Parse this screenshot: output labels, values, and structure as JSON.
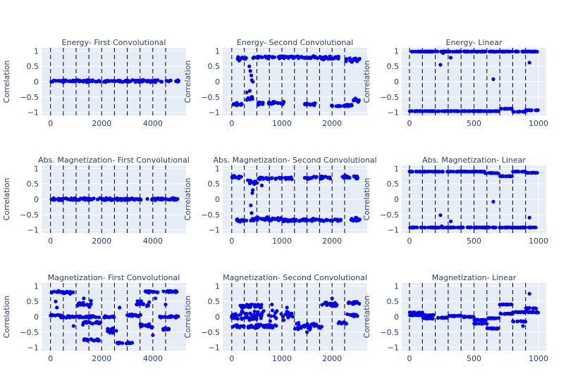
{
  "chart_data": {
    "type": "scatter",
    "grid": "true",
    "series_color": "#0000ee",
    "divider_line_color": "#000000",
    "plot_bg": "#e5ecf6",
    "y_ticks": [
      -1,
      -0.5,
      0,
      0.5,
      1
    ],
    "y_tick_labels": [
      "−1",
      "−0.5",
      "0",
      "0.5",
      "1"
    ],
    "ylim": [
      -1.1,
      1.1
    ],
    "panels": [
      {
        "title": "Energy- First Convolutional",
        "ylabel": "Correlation",
        "xlim": [
          -350,
          5300
        ],
        "x_ticks": [
          0,
          2000,
          4000
        ],
        "dividers": [
          0,
          500,
          1000,
          1500,
          2000,
          2500,
          3000,
          3500,
          4000,
          4500
        ],
        "segments": [
          {
            "from": 0,
            "to": 5100,
            "level": 0.02,
            "spread": 0.05
          }
        ],
        "points": []
      },
      {
        "title": "Energy- Second Convolutional",
        "ylabel": "Correlation",
        "xlim": [
          -180,
          2700
        ],
        "x_ticks": [
          0,
          1000,
          2000
        ],
        "dividers": [
          0,
          250,
          500,
          750,
          1000,
          1250,
          1500,
          1750,
          2000,
          2250
        ],
        "segments": [
          {
            "from": 0,
            "to": 200,
            "level": -0.75,
            "spread": 0.08
          },
          {
            "from": 100,
            "to": 300,
            "level": 0.75,
            "spread": 0.08
          },
          {
            "from": 300,
            "to": 420,
            "level": -0.55,
            "spread": 0.12
          },
          {
            "from": 420,
            "to": 1000,
            "level": 0.8,
            "spread": 0.06
          },
          {
            "from": 520,
            "to": 1050,
            "level": -0.7,
            "spread": 0.08
          },
          {
            "from": 1000,
            "to": 1500,
            "level": 0.8,
            "spread": 0.06
          },
          {
            "from": 1450,
            "to": 2150,
            "level": 0.78,
            "spread": 0.07
          },
          {
            "from": 1450,
            "to": 1700,
            "level": -0.72,
            "spread": 0.06
          },
          {
            "from": 1950,
            "to": 2400,
            "level": -0.78,
            "spread": 0.05
          },
          {
            "from": 2250,
            "to": 2550,
            "level": 0.7,
            "spread": 0.1
          },
          {
            "from": 2400,
            "to": 2570,
            "level": -0.6,
            "spread": 0.08
          }
        ],
        "points": [
          {
            "x": 350,
            "y": 0.5
          },
          {
            "x": 370,
            "y": 0.35
          },
          {
            "x": 390,
            "y": 0.2
          },
          {
            "x": 400,
            "y": 0.05
          },
          {
            "x": 420,
            "y": 0.0
          },
          {
            "x": 360,
            "y": -0.3
          },
          {
            "x": 300,
            "y": -0.35
          }
        ]
      },
      {
        "title": "Energy- Linear",
        "ylabel": "Correlation",
        "xlim": [
          -60,
          1060
        ],
        "x_ticks": [
          0,
          500,
          1000
        ],
        "dividers": [
          0,
          100,
          200,
          300,
          400,
          500,
          600,
          700,
          800,
          900
        ],
        "segments": [
          {
            "from": 0,
            "to": 1000,
            "level": 0.98,
            "spread": 0.01
          },
          {
            "from": 0,
            "to": 700,
            "level": -0.96,
            "spread": 0.01
          },
          {
            "from": 700,
            "to": 800,
            "level": -0.88,
            "spread": 0.01
          },
          {
            "from": 800,
            "to": 900,
            "level": -0.98,
            "spread": 0.01
          },
          {
            "from": 900,
            "to": 1000,
            "level": -0.93,
            "spread": 0.01
          }
        ],
        "points": [
          {
            "x": 240,
            "y": 0.55
          },
          {
            "x": 320,
            "y": 0.78
          },
          {
            "x": 650,
            "y": 0.08
          },
          {
            "x": 930,
            "y": 0.62
          },
          {
            "x": 260,
            "y": 0.93
          }
        ]
      },
      {
        "title": "Abs. Magnetization- First Convolutional",
        "ylabel": "Correlation",
        "xlim": [
          -350,
          5300
        ],
        "x_ticks": [
          0,
          2000,
          4000
        ],
        "dividers": [
          0,
          500,
          1000,
          1500,
          2000,
          2500,
          3000,
          3500,
          4000,
          4500
        ],
        "segments": [
          {
            "from": 0,
            "to": 5100,
            "level": 0.0,
            "spread": 0.06
          }
        ],
        "points": []
      },
      {
        "title": "Abs. Magnetization- Second Convolutional",
        "ylabel": "Correlation",
        "xlim": [
          -180,
          2700
        ],
        "x_ticks": [
          0,
          1000,
          2000
        ],
        "dividers": [
          0,
          250,
          500,
          750,
          1000,
          1250,
          1500,
          1750,
          2000,
          2250
        ],
        "segments": [
          {
            "from": 0,
            "to": 200,
            "level": 0.72,
            "spread": 0.06
          },
          {
            "from": 100,
            "to": 300,
            "level": -0.7,
            "spread": 0.08
          },
          {
            "from": 300,
            "to": 520,
            "level": 0.55,
            "spread": 0.12
          },
          {
            "from": 380,
            "to": 1000,
            "level": -0.65,
            "spread": 0.08
          },
          {
            "from": 520,
            "to": 1200,
            "level": 0.68,
            "spread": 0.08
          },
          {
            "from": 1000,
            "to": 2200,
            "level": -0.68,
            "spread": 0.06
          },
          {
            "from": 1450,
            "to": 2000,
            "level": 0.7,
            "spread": 0.06
          },
          {
            "from": 2200,
            "to": 2560,
            "level": 0.72,
            "spread": 0.08
          },
          {
            "from": 2380,
            "to": 2560,
            "level": -0.65,
            "spread": 0.1
          }
        ],
        "points": [
          {
            "x": 380,
            "y": -0.2
          },
          {
            "x": 395,
            "y": -0.45
          },
          {
            "x": 410,
            "y": 0.2
          },
          {
            "x": 420,
            "y": 0.3
          },
          {
            "x": 600,
            "y": 0.45
          }
        ]
      },
      {
        "title": "Abs. Magnetization- Linear",
        "ylabel": "Correlation",
        "xlim": [
          -60,
          1060
        ],
        "x_ticks": [
          0,
          500,
          1000
        ],
        "dividers": [
          0,
          100,
          200,
          300,
          400,
          500,
          600,
          700,
          800,
          900
        ],
        "segments": [
          {
            "from": 0,
            "to": 580,
            "level": 0.9,
            "spread": 0.01
          },
          {
            "from": 580,
            "to": 700,
            "level": 0.85,
            "spread": 0.01
          },
          {
            "from": 700,
            "to": 800,
            "level": 0.75,
            "spread": 0.01
          },
          {
            "from": 800,
            "to": 900,
            "level": 0.9,
            "spread": 0.01
          },
          {
            "from": 900,
            "to": 1000,
            "level": 0.86,
            "spread": 0.01
          },
          {
            "from": 0,
            "to": 1000,
            "level": -0.92,
            "spread": 0.01
          }
        ],
        "points": [
          {
            "x": 240,
            "y": -0.52
          },
          {
            "x": 320,
            "y": -0.72
          },
          {
            "x": 650,
            "y": -0.08
          },
          {
            "x": 930,
            "y": -0.6
          },
          {
            "x": 250,
            "y": -0.88
          }
        ]
      },
      {
        "title": "Magnetization- First Convolutional",
        "ylabel": "Correlation",
        "xlim": [
          -350,
          5300
        ],
        "x_ticks": [
          0,
          2000,
          4000
        ],
        "dividers": [
          0,
          500,
          1000,
          1500,
          2000,
          2500,
          3000,
          3500,
          4000,
          4500
        ],
        "segments": [
          {
            "from": 0,
            "to": 900,
            "level": 0.8,
            "spread": 0.06
          },
          {
            "from": 0,
            "to": 400,
            "level": 0.05,
            "spread": 0.04
          },
          {
            "from": 400,
            "to": 2500,
            "level": 0.0,
            "spread": 0.05
          },
          {
            "from": 1200,
            "to": 2000,
            "level": -0.2,
            "spread": 0.08
          },
          {
            "from": 1000,
            "to": 1600,
            "level": 0.4,
            "spread": 0.15
          },
          {
            "from": 1300,
            "to": 1900,
            "level": -0.75,
            "spread": 0.05
          },
          {
            "from": 2200,
            "to": 2600,
            "level": -0.45,
            "spread": 0.1
          },
          {
            "from": 2600,
            "to": 3200,
            "level": -0.85,
            "spread": 0.03
          },
          {
            "from": 3000,
            "to": 3600,
            "level": 0.05,
            "spread": 0.06
          },
          {
            "from": 3300,
            "to": 3900,
            "level": 0.4,
            "spread": 0.15
          },
          {
            "from": 3500,
            "to": 4100,
            "level": -0.3,
            "spread": 0.1
          },
          {
            "from": 3700,
            "to": 4200,
            "level": 0.82,
            "spread": 0.05
          },
          {
            "from": 4400,
            "to": 5000,
            "level": 0.82,
            "spread": 0.05
          },
          {
            "from": 4200,
            "to": 5000,
            "level": 0.0,
            "spread": 0.05
          },
          {
            "from": 4400,
            "to": 4700,
            "level": -0.4,
            "spread": 0.05
          }
        ],
        "points": [
          {
            "x": 200,
            "y": 0.5
          },
          {
            "x": 250,
            "y": 0.3
          },
          {
            "x": 1300,
            "y": 0.6
          },
          {
            "x": 900,
            "y": -0.3
          },
          {
            "x": 2700,
            "y": 0.3
          },
          {
            "x": 4000,
            "y": -0.6
          },
          {
            "x": 4100,
            "y": 0.6
          },
          {
            "x": 4500,
            "y": 0.4
          }
        ]
      },
      {
        "title": "Magnetization- Second Convolutional",
        "ylabel": "Correlation",
        "xlim": [
          -180,
          2700
        ],
        "x_ticks": [
          0,
          1000,
          2000
        ],
        "dividers": [
          0,
          250,
          500,
          750,
          1000,
          1250,
          1500,
          1750,
          2000,
          2250
        ],
        "segments": [
          {
            "from": 0,
            "to": 1250,
            "level": 0.05,
            "spread": 0.22
          },
          {
            "from": 0,
            "to": 900,
            "level": -0.3,
            "spread": 0.1
          },
          {
            "from": 150,
            "to": 600,
            "level": 0.35,
            "spread": 0.1
          },
          {
            "from": 1250,
            "to": 1800,
            "level": -0.3,
            "spread": 0.15
          },
          {
            "from": 1800,
            "to": 2100,
            "level": 0.4,
            "spread": 0.1
          },
          {
            "from": 2100,
            "to": 2300,
            "level": -0.2,
            "spread": 0.1
          },
          {
            "from": 2300,
            "to": 2560,
            "level": 0.45,
            "spread": 0.1
          },
          {
            "from": 2300,
            "to": 2560,
            "level": 0.05,
            "spread": 0.08
          }
        ],
        "points": [
          {
            "x": 800,
            "y": 0.4
          },
          {
            "x": 1100,
            "y": 0.3
          },
          {
            "x": 1500,
            "y": -0.5
          },
          {
            "x": 2000,
            "y": 0.6
          }
        ]
      },
      {
        "title": "Magnetization- Linear",
        "ylabel": "Correlation",
        "xlim": [
          -60,
          1060
        ],
        "x_ticks": [
          0,
          500,
          1000
        ],
        "dividers": [
          0,
          100,
          200,
          300,
          400,
          500,
          600,
          700,
          800,
          900
        ],
        "segments": [
          {
            "from": 0,
            "to": 100,
            "level": 0.13,
            "spread": 0.02
          },
          {
            "from": 0,
            "to": 100,
            "level": 0.05,
            "spread": 0.02
          },
          {
            "from": 100,
            "to": 200,
            "level": 0.05,
            "spread": 0.02
          },
          {
            "from": 100,
            "to": 200,
            "level": -0.05,
            "spread": 0.02
          },
          {
            "from": 200,
            "to": 300,
            "level": -0.03,
            "spread": 0.02
          },
          {
            "from": 300,
            "to": 400,
            "level": 0.03,
            "spread": 0.02
          },
          {
            "from": 400,
            "to": 500,
            "level": 0.0,
            "spread": 0.02
          },
          {
            "from": 500,
            "to": 600,
            "level": -0.1,
            "spread": 0.02
          },
          {
            "from": 500,
            "to": 600,
            "level": -0.22,
            "spread": 0.02
          },
          {
            "from": 600,
            "to": 700,
            "level": -0.38,
            "spread": 0.02
          },
          {
            "from": 600,
            "to": 700,
            "level": -0.05,
            "spread": 0.02
          },
          {
            "from": 700,
            "to": 800,
            "level": 0.4,
            "spread": 0.02
          },
          {
            "from": 700,
            "to": 800,
            "level": 0.1,
            "spread": 0.02
          },
          {
            "from": 800,
            "to": 900,
            "level": -0.15,
            "spread": 0.02
          },
          {
            "from": 800,
            "to": 900,
            "level": 0.15,
            "spread": 0.02
          },
          {
            "from": 900,
            "to": 1000,
            "level": 0.28,
            "spread": 0.02
          },
          {
            "from": 900,
            "to": 1000,
            "level": 0.15,
            "spread": 0.02
          }
        ],
        "points": [
          {
            "x": 930,
            "y": 0.75
          },
          {
            "x": 880,
            "y": -0.3
          }
        ]
      }
    ]
  }
}
